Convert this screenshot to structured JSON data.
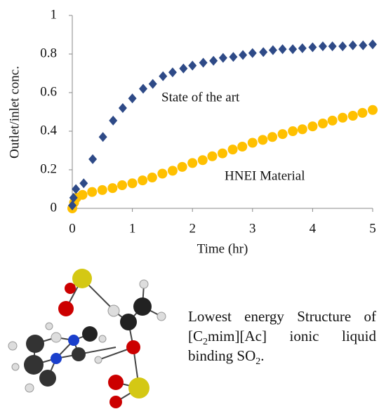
{
  "chart_data": {
    "type": "scatter",
    "xlabel": "Time (hr)",
    "ylabel": "Outlet/inlet conc.",
    "xlim": [
      0,
      5
    ],
    "xticks": [
      0,
      1,
      2,
      3,
      4,
      5
    ],
    "ylim": [
      0,
      1
    ],
    "yticks": [
      0,
      0.2,
      0.4,
      0.6,
      0.8,
      1
    ],
    "series": [
      {
        "name": "State of the art",
        "color": "#2e4a87",
        "marker": "diamond",
        "x": [
          0,
          0.02,
          0.06,
          0.19,
          0.34,
          0.51,
          0.68,
          0.84,
          1.0,
          1.18,
          1.34,
          1.51,
          1.67,
          1.85,
          2.0,
          2.18,
          2.35,
          2.51,
          2.68,
          2.84,
          3.0,
          3.18,
          3.34,
          3.5,
          3.67,
          3.83,
          4.0,
          4.17,
          4.33,
          4.5,
          4.67,
          4.84,
          5.0
        ],
        "values": [
          0.015,
          0.055,
          0.1,
          0.13,
          0.255,
          0.37,
          0.455,
          0.52,
          0.57,
          0.62,
          0.645,
          0.685,
          0.705,
          0.725,
          0.74,
          0.755,
          0.765,
          0.78,
          0.785,
          0.795,
          0.805,
          0.81,
          0.82,
          0.825,
          0.825,
          0.83,
          0.835,
          0.84,
          0.84,
          0.84,
          0.845,
          0.845,
          0.85
        ]
      },
      {
        "name": "HNEI Material",
        "color": "#ffc000",
        "marker": "circle",
        "x": [
          0,
          0.03,
          0.07,
          0.17,
          0.33,
          0.5,
          0.67,
          0.83,
          1.0,
          1.17,
          1.33,
          1.5,
          1.67,
          1.83,
          2.0,
          2.17,
          2.33,
          2.5,
          2.67,
          2.83,
          3.0,
          3.17,
          3.33,
          3.5,
          3.67,
          3.83,
          4.0,
          4.17,
          4.33,
          4.5,
          4.67,
          4.83,
          5.0
        ],
        "values": [
          0.0,
          0.03,
          0.055,
          0.07,
          0.085,
          0.095,
          0.105,
          0.12,
          0.13,
          0.145,
          0.16,
          0.18,
          0.195,
          0.215,
          0.235,
          0.25,
          0.27,
          0.285,
          0.305,
          0.32,
          0.34,
          0.355,
          0.37,
          0.385,
          0.4,
          0.41,
          0.425,
          0.44,
          0.455,
          0.47,
          0.48,
          0.495,
          0.51
        ]
      }
    ]
  },
  "caption": [
    {
      "text": "Lowest energy Structure of [C"
    },
    {
      "sub": "2"
    },
    {
      "text": "mim][Ac] ionic liquid binding SO"
    },
    {
      "sub": "2"
    },
    {
      "text": "."
    }
  ]
}
